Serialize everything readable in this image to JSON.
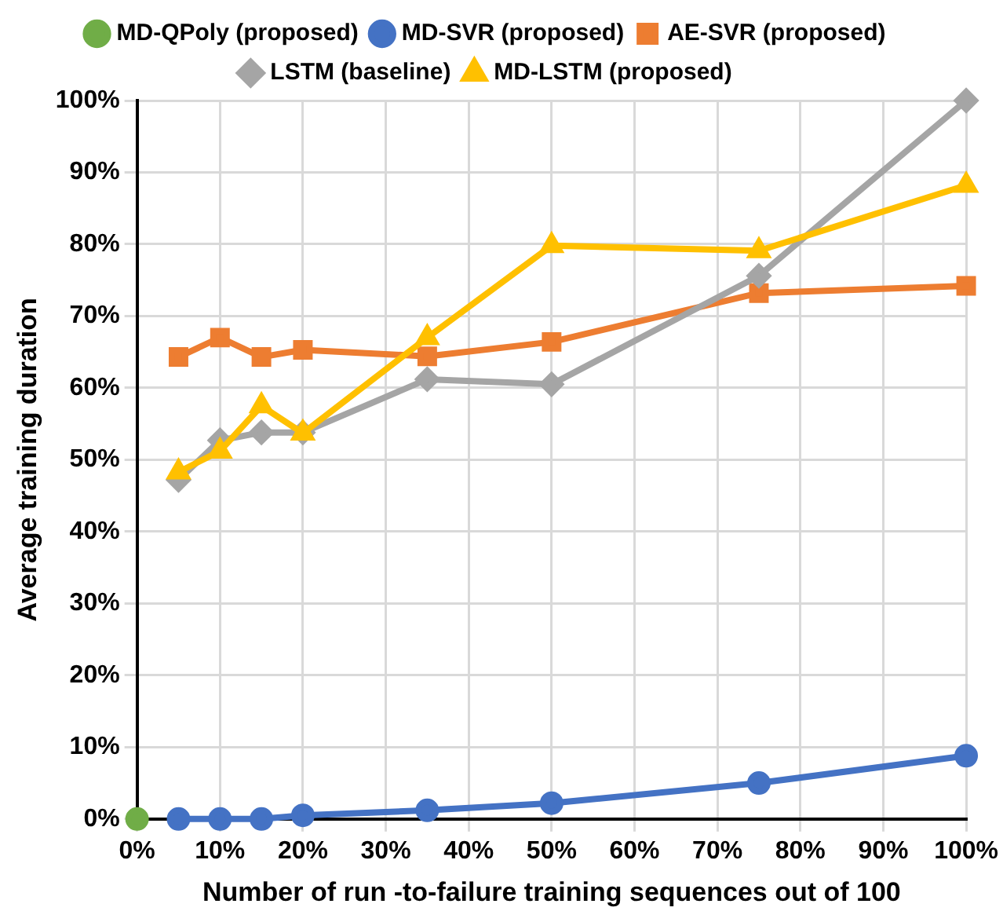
{
  "chart_data": {
    "type": "line",
    "xlabel": "Number of run -to-failure training sequences out of 100",
    "ylabel": "Average training duration",
    "x": [
      5,
      10,
      15,
      20,
      35,
      50,
      75,
      100
    ],
    "series": [
      {
        "name": "MD-QPoly (proposed)",
        "color": "#70ad47",
        "marker": "circle",
        "type": "scatter",
        "x": [
          0
        ],
        "values": [
          0
        ]
      },
      {
        "name": "MD-SVR (proposed)",
        "color": "#4472c4",
        "marker": "circle",
        "values": [
          0,
          0,
          0,
          0.5,
          1.2,
          2.2,
          5,
          8.8
        ]
      },
      {
        "name": "AE-SVR (proposed)",
        "color": "#ed7d31",
        "marker": "square",
        "values": [
          64.3,
          67,
          64.3,
          65.3,
          64.4,
          66.4,
          73.2,
          74.2
        ]
      },
      {
        "name": "LSTM (baseline)",
        "color": "#a5a5a5",
        "marker": "diamond",
        "values": [
          47.2,
          52.7,
          53.8,
          53.8,
          61.2,
          60.5,
          75.6,
          100
        ]
      },
      {
        "name": "MD-LSTM (proposed)",
        "color": "#ffc000",
        "marker": "triangle",
        "values": [
          48.3,
          51.2,
          57.5,
          53.7,
          67,
          79.8,
          79.1,
          88.2
        ]
      }
    ],
    "xlim": [
      0,
      100
    ],
    "ylim": [
      0,
      100
    ],
    "xticks": [
      {
        "value": 0,
        "label": "0%"
      },
      {
        "value": 10,
        "label": "10%"
      },
      {
        "value": 20,
        "label": "20%"
      },
      {
        "value": 30,
        "label": "30%"
      },
      {
        "value": 40,
        "label": "40%"
      },
      {
        "value": 50,
        "label": "50%"
      },
      {
        "value": 60,
        "label": "60%"
      },
      {
        "value": 70,
        "label": "70%"
      },
      {
        "value": 80,
        "label": "80%"
      },
      {
        "value": 90,
        "label": "90%"
      },
      {
        "value": 100,
        "label": "100%"
      }
    ],
    "yticks": [
      {
        "value": 0,
        "label": "0%"
      },
      {
        "value": 10,
        "label": "10%"
      },
      {
        "value": 20,
        "label": "20%"
      },
      {
        "value": 30,
        "label": "30%"
      },
      {
        "value": 40,
        "label": "40%"
      },
      {
        "value": 50,
        "label": "50%"
      },
      {
        "value": 60,
        "label": "60%"
      },
      {
        "value": 70,
        "label": "70%"
      },
      {
        "value": 80,
        "label": "80%"
      },
      {
        "value": 90,
        "label": "90%"
      },
      {
        "value": 100,
        "label": "100%"
      }
    ],
    "grid": true,
    "legend": "top",
    "line_style": "solid"
  }
}
